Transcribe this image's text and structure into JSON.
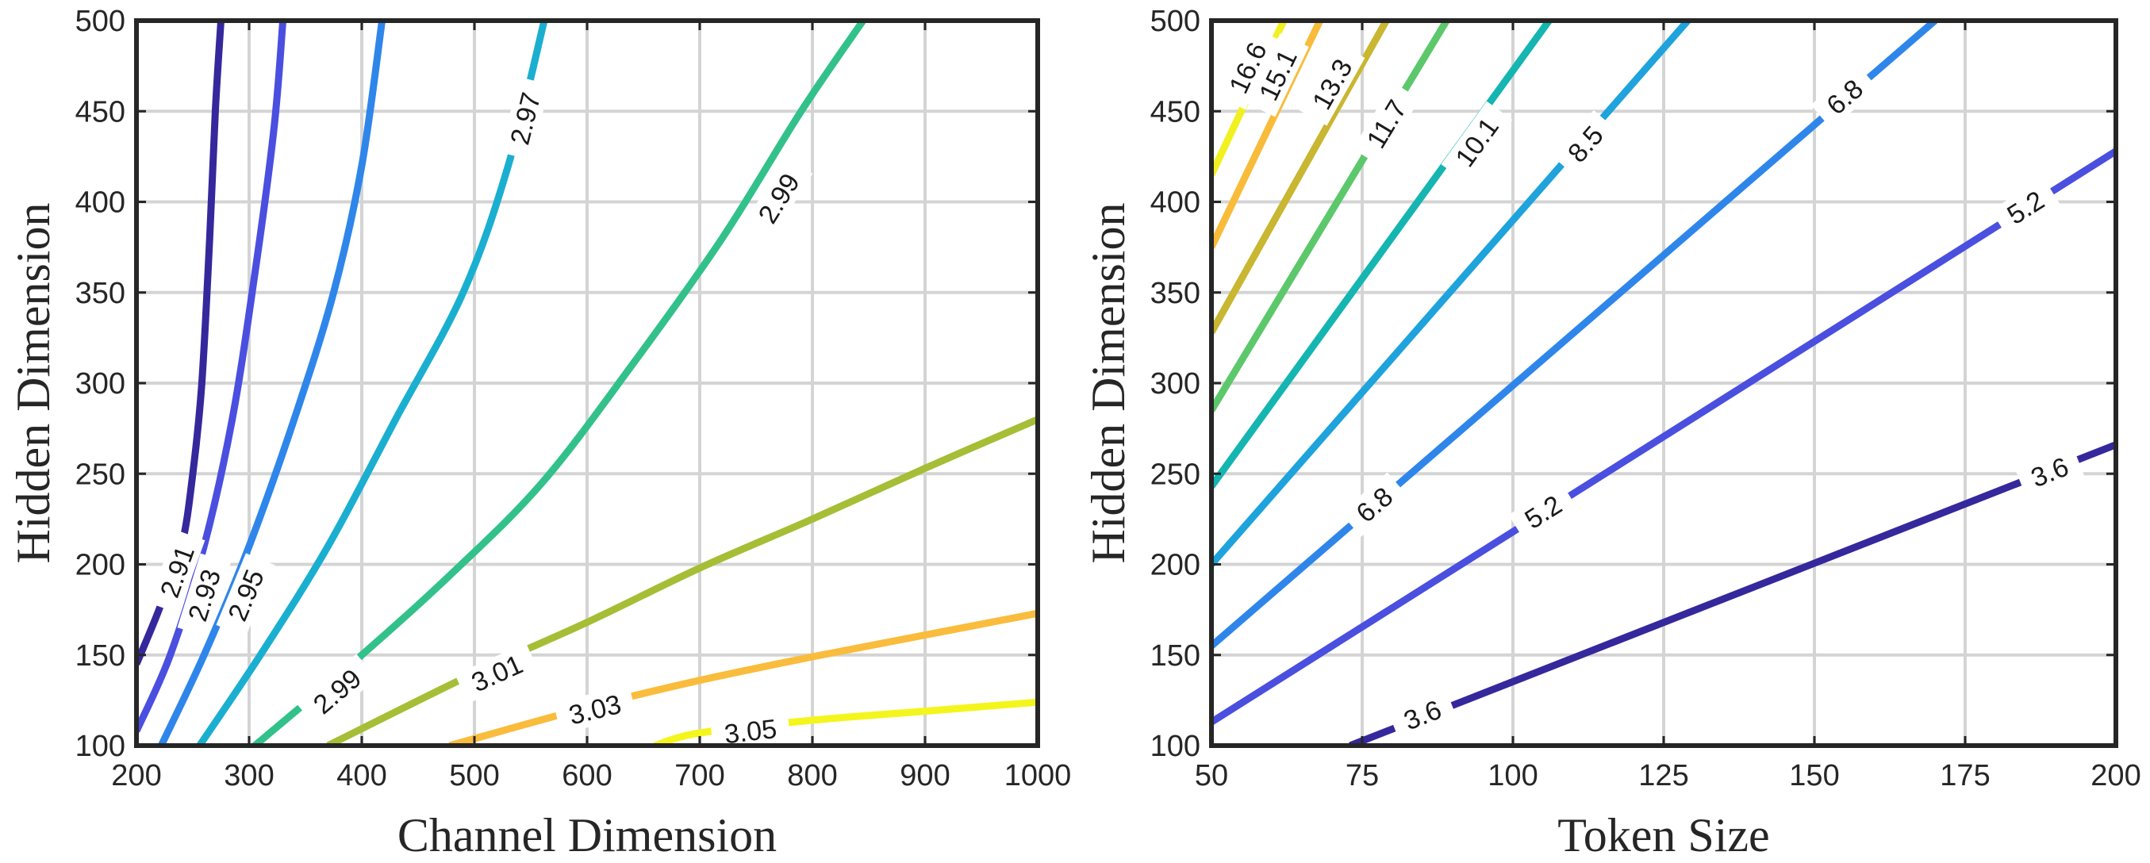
{
  "chart_data": [
    {
      "type": "contour",
      "xlabel": "Channel Dimension",
      "ylabel": "Hidden Dimension",
      "xlim": [
        200,
        1000
      ],
      "ylim": [
        100,
        500
      ],
      "xticks": [
        200,
        300,
        400,
        500,
        600,
        700,
        800,
        900,
        1000
      ],
      "yticks": [
        100,
        150,
        200,
        250,
        300,
        350,
        400,
        450,
        500
      ],
      "grid": true,
      "contours": [
        {
          "level": "2.91",
          "color": "#35289c",
          "points": [
            [
              200,
              145
            ],
            [
              220,
              175
            ],
            [
              240,
              210
            ],
            [
              250,
              250
            ],
            [
              258,
              300
            ],
            [
              265,
              380
            ],
            [
              270,
              450
            ],
            [
              275,
              500
            ]
          ],
          "labels": [
            {
              "x": 236,
              "y": 196
            }
          ]
        },
        {
          "level": "2.93",
          "color": "#4a4fe0",
          "points": [
            [
              200,
              108
            ],
            [
              230,
              150
            ],
            [
              260,
              210
            ],
            [
              285,
              280
            ],
            [
              305,
              360
            ],
            [
              322,
              440
            ],
            [
              330,
              500
            ]
          ],
          "labels": [
            {
              "x": 260,
              "y": 183
            }
          ]
        },
        {
          "level": "2.95",
          "color": "#2f86ea",
          "points": [
            [
              222,
              100
            ],
            [
              260,
              150
            ],
            [
              300,
              210
            ],
            [
              340,
              280
            ],
            [
              375,
              350
            ],
            [
              400,
              420
            ],
            [
              418,
              500
            ]
          ],
          "labels": [
            {
              "x": 297,
              "y": 183
            }
          ]
        },
        {
          "level": "2.97",
          "color": "#1aafd0",
          "points": [
            [
              256,
              100
            ],
            [
              310,
              150
            ],
            [
              370,
              210
            ],
            [
              430,
              280
            ],
            [
              490,
              350
            ],
            [
              530,
              420
            ],
            [
              562,
              500
            ]
          ],
          "labels": [
            {
              "x": 545,
              "y": 446
            }
          ]
        },
        {
          "level": "2.99",
          "color": "#32c18a",
          "points": [
            [
              305,
              100
            ],
            [
              400,
              150
            ],
            [
              480,
              195
            ],
            [
              560,
              245
            ],
            [
              640,
              310
            ],
            [
              720,
              380
            ],
            [
              790,
              450
            ],
            [
              845,
              500
            ]
          ],
          "labels": [
            {
              "x": 378,
              "y": 130
            },
            {
              "x": 770,
              "y": 402
            }
          ]
        },
        {
          "level": "3.01",
          "color": "#a5be35",
          "points": [
            [
              370,
              100
            ],
            [
              500,
              140
            ],
            [
              600,
              168
            ],
            [
              700,
              198
            ],
            [
              800,
              225
            ],
            [
              900,
              253
            ],
            [
              1000,
              280
            ]
          ],
          "labels": [
            {
              "x": 520,
              "y": 140
            }
          ]
        },
        {
          "level": "3.03",
          "color": "#f9bc3c",
          "points": [
            [
              478,
              100
            ],
            [
              600,
              121
            ],
            [
              700,
              136
            ],
            [
              800,
              149
            ],
            [
              900,
              161
            ],
            [
              1000,
              173
            ]
          ],
          "labels": [
            {
              "x": 607,
              "y": 120
            }
          ]
        },
        {
          "level": "3.05",
          "color": "#f4f51c",
          "points": [
            [
              660,
              100
            ],
            [
              700,
              107
            ],
            [
              800,
              114
            ],
            [
              900,
              119
            ],
            [
              1000,
              124
            ]
          ],
          "labels": [
            {
              "x": 745,
              "y": 108
            }
          ]
        }
      ]
    },
    {
      "type": "contour",
      "xlabel": "Token Size",
      "ylabel": "Hidden Dimension",
      "xlim": [
        50,
        200
      ],
      "ylim": [
        100,
        500
      ],
      "xticks": [
        50,
        75,
        100,
        125,
        150,
        175,
        200
      ],
      "yticks": [
        100,
        150,
        200,
        250,
        300,
        350,
        400,
        450,
        500
      ],
      "grid": true,
      "contours": [
        {
          "level": "3.6",
          "color": "#35289c",
          "points": [
            [
              73,
              100
            ],
            [
              200,
              266
            ]
          ],
          "labels": [
            {
              "x": 85,
              "y": 117
            },
            {
              "x": 189,
              "y": 251
            }
          ]
        },
        {
          "level": "5.2",
          "color": "#4a4fe0",
          "points": [
            [
              50,
              113
            ],
            [
              200,
              428
            ]
          ],
          "labels": [
            {
              "x": 105,
              "y": 229
            },
            {
              "x": 185,
              "y": 397
            }
          ]
        },
        {
          "level": "6.8",
          "color": "#2f86ea",
          "points": [
            [
              50,
              155
            ],
            [
              170,
              500
            ]
          ],
          "labels": [
            {
              "x": 77,
              "y": 233
            },
            {
              "x": 155,
              "y": 458
            }
          ]
        },
        {
          "level": "8.5",
          "color": "#1ea3dc",
          "points": [
            [
              50,
              200
            ],
            [
              129,
              500
            ]
          ],
          "labels": [
            {
              "x": 112,
              "y": 432
            }
          ]
        },
        {
          "level": "10.1",
          "color": "#15b5b1",
          "points": [
            [
              50,
              243
            ],
            [
              106,
              500
            ]
          ],
          "labels": [
            {
              "x": 94,
              "y": 433
            }
          ]
        },
        {
          "level": "11.7",
          "color": "#5cc86b",
          "points": [
            [
              50,
              285
            ],
            [
              89,
              500
            ]
          ],
          "labels": [
            {
              "x": 79,
              "y": 443
            }
          ]
        },
        {
          "level": "13.3",
          "color": "#c9b631",
          "points": [
            [
              50,
              328
            ],
            [
              79,
              500
            ]
          ],
          "labels": [
            {
              "x": 70,
              "y": 465
            }
          ]
        },
        {
          "level": "15.1",
          "color": "#f8bc3a",
          "points": [
            [
              50,
              375
            ],
            [
              68,
              500
            ]
          ],
          "labels": [
            {
              "x": 61,
              "y": 470
            }
          ]
        },
        {
          "level": "16.6",
          "color": "#f1f020",
          "points": [
            [
              50,
              415
            ],
            [
              62,
              500
            ]
          ],
          "labels": [
            {
              "x": 56,
              "y": 474
            }
          ]
        }
      ]
    }
  ]
}
